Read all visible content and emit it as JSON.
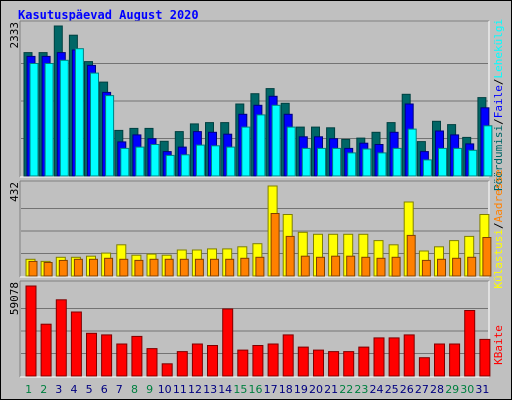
{
  "title": "Kasutuspäevad August 2020",
  "colors": {
    "hits": "#006666",
    "files": "#0000ff",
    "pages": "#00ffff",
    "visits": "#ffff00",
    "sites": "#ff8000",
    "kbytes": "#ff0000",
    "weekend_label": "#008040",
    "weekday_label": "#000080"
  },
  "chart_data": [
    {
      "type": "bar",
      "y_max_label": "2333",
      "ylim": [
        0,
        2333
      ],
      "legend": [
        {
          "text": "Pöördumisi",
          "color": "#006666"
        },
        {
          "text": "/",
          "color": "#000000"
        },
        {
          "text": "Faile",
          "color": "#0000ff"
        },
        {
          "text": "/",
          "color": "#000000"
        },
        {
          "text": "Lehekülgi",
          "color": "#00ffff"
        }
      ],
      "series": [
        {
          "values": [
            1920,
            1920,
            2333,
            2190,
            1780,
            1460,
            710,
            740,
            740,
            540,
            690,
            810,
            830,
            830,
            1120,
            1280,
            1360,
            1130,
            760,
            760,
            750,
            570,
            590,
            680,
            830,
            1270,
            535,
            850,
            800,
            600,
            1220
          ],
          "color": "#006666"
        },
        {
          "values": [
            1860,
            1860,
            1920,
            1960,
            1720,
            1300,
            530,
            640,
            580,
            380,
            450,
            690,
            680,
            650,
            960,
            1100,
            1240,
            960,
            610,
            610,
            580,
            430,
            510,
            490,
            680,
            1120,
            380,
            700,
            640,
            500,
            1060
          ],
          "color": "#0000ff"
        },
        {
          "values": [
            1750,
            1750,
            1800,
            1980,
            1600,
            1250,
            430,
            450,
            490,
            320,
            330,
            480,
            470,
            450,
            760,
            950,
            1100,
            760,
            430,
            430,
            430,
            360,
            420,
            360,
            430,
            730,
            250,
            430,
            430,
            400,
            780
          ],
          "color": "#00ffff"
        }
      ]
    },
    {
      "type": "bar",
      "y_max_label": "432",
      "ylim": [
        0,
        432
      ],
      "legend": [
        {
          "text": "Külastusi",
          "color": "#ffff00"
        },
        {
          "text": "/",
          "color": "#000000"
        },
        {
          "text": "Aadresse",
          "color": "#ff8000"
        }
      ],
      "series": [
        {
          "values": [
            80,
            70,
            90,
            90,
            95,
            110,
            150,
            100,
            105,
            100,
            125,
            125,
            130,
            130,
            140,
            155,
            432,
            295,
            210,
            200,
            200,
            200,
            200,
            170,
            150,
            355,
            120,
            140,
            170,
            190,
            295
          ],
          "color": "#ffff00"
        },
        {
          "values": [
            70,
            65,
            75,
            80,
            80,
            85,
            80,
            75,
            80,
            80,
            80,
            80,
            80,
            80,
            85,
            90,
            300,
            190,
            95,
            90,
            95,
            95,
            90,
            85,
            90,
            195,
            75,
            80,
            85,
            90,
            185
          ],
          "color": "#ff8000"
        }
      ]
    },
    {
      "type": "bar",
      "y_max_label": "59078",
      "ylim": [
        0,
        59078
      ],
      "legend": [
        {
          "text": "KBaite",
          "color": "#ff0000"
        }
      ],
      "series": [
        {
          "values": [
            59078,
            34000,
            50000,
            42000,
            28000,
            27000,
            21000,
            26000,
            18000,
            8000,
            16000,
            21000,
            20000,
            44000,
            17000,
            20000,
            21000,
            27000,
            19000,
            17000,
            16000,
            16000,
            19000,
            25000,
            25000,
            27000,
            12000,
            21000,
            21000,
            43000,
            24000
          ],
          "color": "#ff0000"
        }
      ]
    }
  ],
  "x_labels": [
    {
      "text": "1",
      "weekend": true
    },
    {
      "text": "2",
      "weekend": true
    },
    {
      "text": "3",
      "weekend": false
    },
    {
      "text": "4",
      "weekend": false
    },
    {
      "text": "5",
      "weekend": false
    },
    {
      "text": "6",
      "weekend": false
    },
    {
      "text": "7",
      "weekend": false
    },
    {
      "text": "8",
      "weekend": true
    },
    {
      "text": "9",
      "weekend": true
    },
    {
      "text": "10",
      "weekend": false
    },
    {
      "text": "11",
      "weekend": false
    },
    {
      "text": "12",
      "weekend": false
    },
    {
      "text": "13",
      "weekend": false
    },
    {
      "text": "14",
      "weekend": false
    },
    {
      "text": "15",
      "weekend": true
    },
    {
      "text": "16",
      "weekend": true
    },
    {
      "text": "17",
      "weekend": false
    },
    {
      "text": "18",
      "weekend": false
    },
    {
      "text": "19",
      "weekend": false
    },
    {
      "text": "20",
      "weekend": false
    },
    {
      "text": "21",
      "weekend": false
    },
    {
      "text": "22",
      "weekend": true
    },
    {
      "text": "23",
      "weekend": true
    },
    {
      "text": "24",
      "weekend": false
    },
    {
      "text": "25",
      "weekend": false
    },
    {
      "text": "26",
      "weekend": false
    },
    {
      "text": "27",
      "weekend": false
    },
    {
      "text": "28",
      "weekend": false
    },
    {
      "text": "29",
      "weekend": true
    },
    {
      "text": "30",
      "weekend": true
    },
    {
      "text": "31",
      "weekend": false
    }
  ]
}
